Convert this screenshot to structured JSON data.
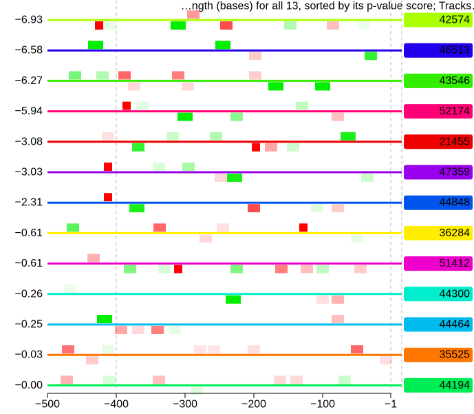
{
  "chart_data": {
    "type": "line",
    "title": "…ngth (bases) for all 13, sorted by its p-value score; Tracks…",
    "xlabel": "",
    "ylabel": "",
    "xlim": [
      -500,
      0
    ],
    "x_ticks": [
      -500,
      -400,
      -300,
      -200,
      -100,
      -1
    ],
    "x_tick_labels": [
      "−500",
      "−400",
      "−300",
      "−200",
      "−100",
      "−1"
    ],
    "reference_lines_x": [
      -400,
      -1
    ],
    "grid": false,
    "legend": "none",
    "marker_colors": {
      "enriched": "#00ee00",
      "depleted": "#ff0000"
    },
    "tracks": [
      {
        "score_label": "−6.93",
        "id_label": "42574",
        "color": "#aaff00",
        "marks": [
          {
            "x": -425,
            "side": "below",
            "kind": "depleted",
            "strength": 1.0
          },
          {
            "x": -410,
            "side": "below",
            "kind": "enriched",
            "strength": 0.1
          },
          {
            "x": -310,
            "side": "below",
            "kind": "enriched",
            "strength": 1.0
          },
          {
            "x": -288,
            "side": "above",
            "kind": "depleted",
            "strength": 0.4
          },
          {
            "x": -240,
            "side": "below",
            "kind": "depleted",
            "strength": 0.7
          },
          {
            "x": -147,
            "side": "below",
            "kind": "enriched",
            "strength": 0.3
          },
          {
            "x": -85,
            "side": "below",
            "kind": "depleted",
            "strength": 0.25
          },
          {
            "x": -40,
            "side": "below",
            "kind": "enriched",
            "strength": 0.08
          }
        ]
      },
      {
        "score_label": "−6.58",
        "id_label": "46513",
        "color": "#2200ee",
        "marks": [
          {
            "x": -430,
            "side": "above",
            "kind": "enriched",
            "strength": 1.0
          },
          {
            "x": -245,
            "side": "above",
            "kind": "enriched",
            "strength": 1.0
          },
          {
            "x": -198,
            "side": "below",
            "kind": "depleted",
            "strength": 0.2
          },
          {
            "x": -30,
            "side": "below",
            "kind": "enriched",
            "strength": 0.8
          }
        ]
      },
      {
        "score_label": "−6.27",
        "id_label": "43546",
        "color": "#33ee00",
        "marks": [
          {
            "x": -460,
            "side": "above",
            "kind": "enriched",
            "strength": 0.55
          },
          {
            "x": -420,
            "side": "above",
            "kind": "enriched",
            "strength": 0.3
          },
          {
            "x": -388,
            "side": "above",
            "kind": "depleted",
            "strength": 0.6
          },
          {
            "x": -374,
            "side": "below",
            "kind": "depleted",
            "strength": 0.15
          },
          {
            "x": -310,
            "side": "above",
            "kind": "depleted",
            "strength": 0.5
          },
          {
            "x": -296,
            "side": "below",
            "kind": "depleted",
            "strength": 0.15
          },
          {
            "x": -198,
            "side": "above",
            "kind": "depleted",
            "strength": 0.2
          },
          {
            "x": -168,
            "side": "below",
            "kind": "enriched",
            "strength": 1.0
          },
          {
            "x": -100,
            "side": "below",
            "kind": "enriched",
            "strength": 1.0
          }
        ]
      },
      {
        "score_label": "−5.94",
        "id_label": "52174",
        "color": "#ff0077",
        "marks": [
          {
            "x": -385,
            "side": "above",
            "kind": "depleted",
            "strength": 1.0
          },
          {
            "x": -362,
            "side": "above",
            "kind": "enriched",
            "strength": 0.12
          },
          {
            "x": -300,
            "side": "below",
            "kind": "enriched",
            "strength": 1.0
          },
          {
            "x": -225,
            "side": "below",
            "kind": "enriched",
            "strength": 0.45
          },
          {
            "x": -130,
            "side": "above",
            "kind": "enriched",
            "strength": 0.25
          },
          {
            "x": -78,
            "side": "below",
            "kind": "depleted",
            "strength": 0.25
          }
        ]
      },
      {
        "score_label": "−3.08",
        "id_label": "21455",
        "color": "#ee0000",
        "marks": [
          {
            "x": -412,
            "side": "above",
            "kind": "depleted",
            "strength": 0.12
          },
          {
            "x": -368,
            "side": "below",
            "kind": "enriched",
            "strength": 0.8
          },
          {
            "x": -318,
            "side": "above",
            "kind": "enriched",
            "strength": 0.2
          },
          {
            "x": -255,
            "side": "above",
            "kind": "enriched",
            "strength": 0.3
          },
          {
            "x": -197,
            "side": "below",
            "kind": "depleted",
            "strength": 1.0
          },
          {
            "x": -175,
            "side": "below",
            "kind": "depleted",
            "strength": 0.35
          },
          {
            "x": -143,
            "side": "below",
            "kind": "enriched",
            "strength": 0.2
          },
          {
            "x": -63,
            "side": "above",
            "kind": "enriched",
            "strength": 0.9
          }
        ]
      },
      {
        "score_label": "−3.03",
        "id_label": "47359",
        "color": "#9900ee",
        "marks": [
          {
            "x": -412,
            "side": "above",
            "kind": "depleted",
            "strength": 1.0
          },
          {
            "x": -338,
            "side": "above",
            "kind": "enriched",
            "strength": 0.15
          },
          {
            "x": -295,
            "side": "above",
            "kind": "enriched",
            "strength": 0.35
          },
          {
            "x": -248,
            "side": "below",
            "kind": "depleted",
            "strength": 0.15
          },
          {
            "x": -228,
            "side": "below",
            "kind": "enriched",
            "strength": 0.9
          },
          {
            "x": -35,
            "side": "below",
            "kind": "enriched",
            "strength": 0.2
          }
        ]
      },
      {
        "score_label": "−2.31",
        "id_label": "44848",
        "color": "#0055ee",
        "marks": [
          {
            "x": -412,
            "side": "above",
            "kind": "depleted",
            "strength": 1.0
          },
          {
            "x": -370,
            "side": "below",
            "kind": "enriched",
            "strength": 0.9
          },
          {
            "x": -200,
            "side": "below",
            "kind": "depleted",
            "strength": 0.7
          },
          {
            "x": -108,
            "side": "below",
            "kind": "enriched",
            "strength": 0.12
          },
          {
            "x": -78,
            "side": "below",
            "kind": "depleted",
            "strength": 0.2
          }
        ]
      },
      {
        "score_label": "−0.61",
        "id_label": "36284",
        "color": "#ffee00",
        "marks": [
          {
            "x": -463,
            "side": "above",
            "kind": "enriched",
            "strength": 0.65
          },
          {
            "x": -337,
            "side": "above",
            "kind": "depleted",
            "strength": 0.6
          },
          {
            "x": -270,
            "side": "below",
            "kind": "depleted",
            "strength": 0.15
          },
          {
            "x": -245,
            "side": "above",
            "kind": "depleted",
            "strength": 0.12
          },
          {
            "x": -128,
            "side": "above",
            "kind": "depleted",
            "strength": 1.0
          },
          {
            "x": -50,
            "side": "below",
            "kind": "enriched",
            "strength": 0.1
          }
        ]
      },
      {
        "score_label": "−0.61",
        "id_label": "51412",
        "color": "#ee00cc",
        "marks": [
          {
            "x": -433,
            "side": "above",
            "kind": "depleted",
            "strength": 0.3
          },
          {
            "x": -380,
            "side": "below",
            "kind": "enriched",
            "strength": 0.5
          },
          {
            "x": -330,
            "side": "below",
            "kind": "enriched",
            "strength": 0.15
          },
          {
            "x": -310,
            "side": "below",
            "kind": "depleted",
            "strength": 1.0
          },
          {
            "x": -225,
            "side": "below",
            "kind": "enriched",
            "strength": 0.5
          },
          {
            "x": -160,
            "side": "below",
            "kind": "depleted",
            "strength": 0.5
          },
          {
            "x": -123,
            "side": "below",
            "kind": "depleted",
            "strength": 0.25
          },
          {
            "x": -100,
            "side": "below",
            "kind": "enriched",
            "strength": 0.25
          },
          {
            "x": -45,
            "side": "below",
            "kind": "depleted",
            "strength": 0.2
          }
        ]
      },
      {
        "score_label": "−0.26",
        "id_label": "44300",
        "color": "#00eecc",
        "marks": [
          {
            "x": -467,
            "side": "above",
            "kind": "enriched",
            "strength": 0.08
          },
          {
            "x": -230,
            "side": "below",
            "kind": "enriched",
            "strength": 1.0
          },
          {
            "x": -100,
            "side": "below",
            "kind": "depleted",
            "strength": 0.12
          },
          {
            "x": -78,
            "side": "below",
            "kind": "depleted",
            "strength": 0.3
          }
        ]
      },
      {
        "score_label": "−0.25",
        "id_label": "44464",
        "color": "#00bbee",
        "marks": [
          {
            "x": -417,
            "side": "above",
            "kind": "enriched",
            "strength": 1.0
          },
          {
            "x": -393,
            "side": "below",
            "kind": "depleted",
            "strength": 0.35
          },
          {
            "x": -368,
            "side": "below",
            "kind": "depleted",
            "strength": 0.15
          },
          {
            "x": -340,
            "side": "below",
            "kind": "depleted",
            "strength": 0.5
          },
          {
            "x": -315,
            "side": "below",
            "kind": "enriched",
            "strength": 0.1
          },
          {
            "x": -78,
            "side": "above",
            "kind": "depleted",
            "strength": 0.25
          }
        ]
      },
      {
        "score_label": "−0.03",
        "id_label": "35525",
        "color": "#ff7700",
        "marks": [
          {
            "x": -470,
            "side": "above",
            "kind": "depleted",
            "strength": 0.55
          },
          {
            "x": -435,
            "side": "below",
            "kind": "depleted",
            "strength": 0.2
          },
          {
            "x": -412,
            "side": "above",
            "kind": "enriched",
            "strength": 0.1
          },
          {
            "x": -278,
            "side": "above",
            "kind": "depleted",
            "strength": 0.1
          },
          {
            "x": -258,
            "side": "above",
            "kind": "depleted",
            "strength": 0.1
          },
          {
            "x": -200,
            "side": "above",
            "kind": "depleted",
            "strength": 0.12
          },
          {
            "x": -50,
            "side": "above",
            "kind": "depleted",
            "strength": 0.6
          },
          {
            "x": -8,
            "side": "below",
            "kind": "depleted",
            "strength": 0.12
          }
        ]
      },
      {
        "score_label": "−0.00",
        "id_label": "44194",
        "color": "#00ee55",
        "marks": [
          {
            "x": -472,
            "side": "above",
            "kind": "depleted",
            "strength": 0.3
          },
          {
            "x": -410,
            "side": "above",
            "kind": "enriched",
            "strength": 0.15
          },
          {
            "x": -338,
            "side": "above",
            "kind": "depleted",
            "strength": 0.25
          },
          {
            "x": -283,
            "side": "below",
            "kind": "enriched",
            "strength": 0.12
          },
          {
            "x": -162,
            "side": "above",
            "kind": "depleted",
            "strength": 0.15
          },
          {
            "x": -138,
            "side": "above",
            "kind": "depleted",
            "strength": 0.15
          },
          {
            "x": -68,
            "side": "above",
            "kind": "enriched",
            "strength": 0.2
          }
        ]
      }
    ]
  }
}
